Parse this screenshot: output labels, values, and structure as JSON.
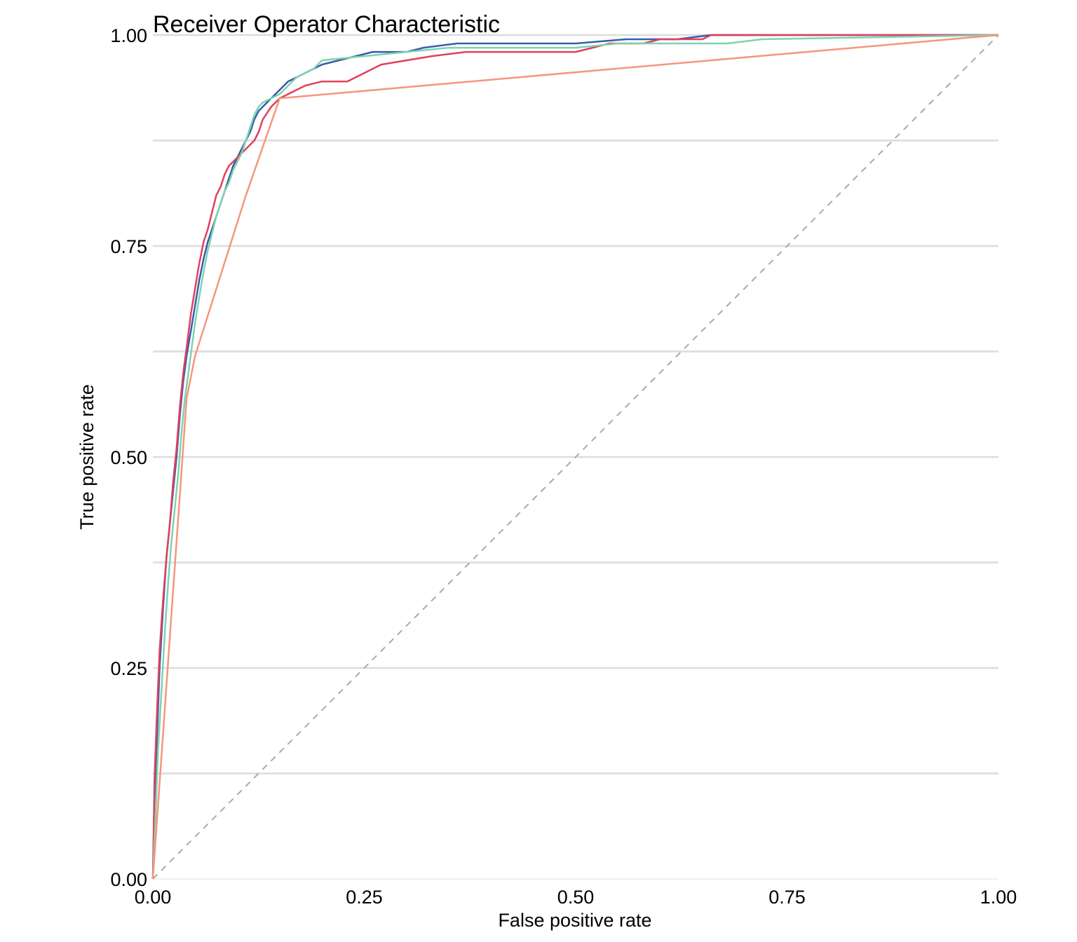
{
  "chart_data": {
    "type": "line",
    "title": "Receiver Operator Characteristic",
    "xlabel": "False positive rate",
    "ylabel": "True positive rate",
    "xlim": [
      0,
      1
    ],
    "ylim": [
      0,
      1
    ],
    "x_ticks": [
      "0.00",
      "0.25",
      "0.50",
      "0.75",
      "1.00"
    ],
    "y_ticks": [
      "0.00",
      "0.25",
      "0.50",
      "0.75",
      "1.00"
    ],
    "grid": "horizontal major and minor",
    "legend": "none",
    "reference_line": {
      "x": [
        0,
        1
      ],
      "y": [
        0,
        1
      ],
      "style": "dashed",
      "color": "#aaaaaa"
    },
    "series": [
      {
        "color": "#3a5ba8",
        "x": [
          0,
          0.002,
          0.005,
          0.008,
          0.012,
          0.016,
          0.02,
          0.024,
          0.028,
          0.032,
          0.036,
          0.04,
          0.045,
          0.05,
          0.055,
          0.06,
          0.065,
          0.07,
          0.075,
          0.08,
          0.085,
          0.09,
          0.095,
          0.1,
          0.105,
          0.11,
          0.115,
          0.12,
          0.125,
          0.13,
          0.135,
          0.14,
          0.145,
          0.15,
          0.155,
          0.16,
          0.17,
          0.18,
          0.19,
          0.2,
          0.22,
          0.24,
          0.26,
          0.3,
          0.32,
          0.36,
          0.45,
          0.5,
          0.56,
          0.62,
          0.66,
          1.0
        ],
        "y": [
          0,
          0.08,
          0.17,
          0.25,
          0.32,
          0.38,
          0.42,
          0.46,
          0.5,
          0.55,
          0.59,
          0.62,
          0.65,
          0.68,
          0.71,
          0.735,
          0.755,
          0.77,
          0.785,
          0.8,
          0.815,
          0.83,
          0.845,
          0.855,
          0.865,
          0.875,
          0.885,
          0.9,
          0.91,
          0.915,
          0.92,
          0.925,
          0.93,
          0.935,
          0.94,
          0.945,
          0.95,
          0.955,
          0.96,
          0.965,
          0.97,
          0.975,
          0.98,
          0.98,
          0.985,
          0.99,
          0.99,
          0.99,
          0.995,
          0.995,
          1.0,
          1.0
        ]
      },
      {
        "color": "#e0405f",
        "x": [
          0,
          0.002,
          0.005,
          0.008,
          0.012,
          0.016,
          0.02,
          0.024,
          0.028,
          0.032,
          0.036,
          0.04,
          0.045,
          0.05,
          0.055,
          0.06,
          0.065,
          0.07,
          0.075,
          0.08,
          0.085,
          0.09,
          0.095,
          0.1,
          0.105,
          0.11,
          0.115,
          0.12,
          0.125,
          0.13,
          0.14,
          0.15,
          0.16,
          0.17,
          0.18,
          0.2,
          0.23,
          0.25,
          0.27,
          0.3,
          0.33,
          0.37,
          0.45,
          0.5,
          0.52,
          0.54,
          0.58,
          0.6,
          0.65,
          0.66,
          1.0
        ],
        "y": [
          0,
          0.12,
          0.2,
          0.27,
          0.33,
          0.38,
          0.42,
          0.47,
          0.51,
          0.56,
          0.6,
          0.63,
          0.67,
          0.7,
          0.73,
          0.755,
          0.77,
          0.79,
          0.81,
          0.82,
          0.835,
          0.845,
          0.85,
          0.855,
          0.86,
          0.865,
          0.87,
          0.875,
          0.885,
          0.9,
          0.915,
          0.925,
          0.93,
          0.935,
          0.94,
          0.945,
          0.945,
          0.955,
          0.965,
          0.97,
          0.975,
          0.98,
          0.98,
          0.98,
          0.985,
          0.99,
          0.99,
          0.995,
          0.995,
          1.0,
          1.0
        ]
      },
      {
        "color": "#7dd3b0",
        "x": [
          0,
          0.003,
          0.006,
          0.01,
          0.014,
          0.018,
          0.022,
          0.026,
          0.03,
          0.034,
          0.038,
          0.042,
          0.046,
          0.05,
          0.055,
          0.06,
          0.065,
          0.07,
          0.075,
          0.08,
          0.085,
          0.09,
          0.095,
          0.1,
          0.105,
          0.11,
          0.115,
          0.12,
          0.125,
          0.13,
          0.14,
          0.15,
          0.16,
          0.17,
          0.19,
          0.2,
          0.25,
          0.3,
          0.35,
          0.4,
          0.5,
          0.55,
          0.6,
          0.68,
          0.72,
          1.0
        ],
        "y": [
          0,
          0.07,
          0.15,
          0.22,
          0.29,
          0.35,
          0.4,
          0.44,
          0.48,
          0.53,
          0.57,
          0.6,
          0.63,
          0.66,
          0.69,
          0.72,
          0.745,
          0.765,
          0.785,
          0.8,
          0.815,
          0.825,
          0.84,
          0.85,
          0.86,
          0.875,
          0.89,
          0.905,
          0.915,
          0.92,
          0.925,
          0.93,
          0.94,
          0.95,
          0.96,
          0.97,
          0.975,
          0.98,
          0.985,
          0.985,
          0.985,
          0.99,
          0.99,
          0.99,
          0.995,
          1.0
        ]
      },
      {
        "color": "#f5967d",
        "x": [
          0,
          0.04,
          0.05,
          0.11,
          0.15,
          1.0
        ],
        "y": [
          0,
          0.57,
          0.62,
          0.81,
          0.925,
          1.0
        ]
      }
    ]
  }
}
